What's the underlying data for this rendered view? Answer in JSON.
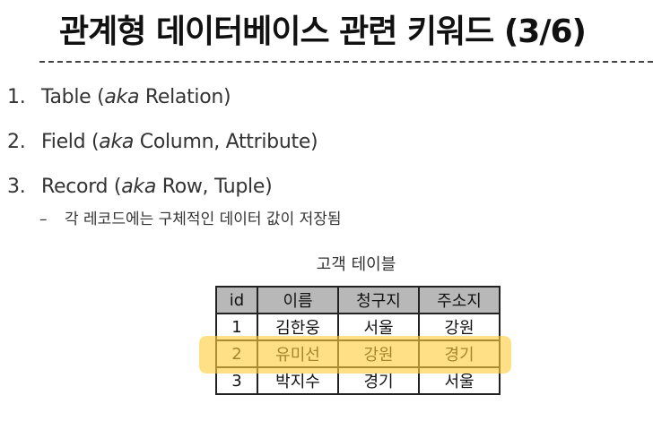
{
  "title": "관계형 데이터베이스 관련 키워드 (3/6)",
  "list": [
    {
      "num": "1.",
      "term": "Table (",
      "aka": "aka",
      "rest": " Relation)"
    },
    {
      "num": "2.",
      "term": "Field (",
      "aka": "aka",
      "rest": " Column, Attribute)"
    },
    {
      "num": "3.",
      "term": "Record (",
      "aka": "aka",
      "rest": " Row, Tuple)"
    }
  ],
  "sub_item": {
    "dash": "–",
    "text": "각 레코드에는 구체적인 데이터 값이 저장됨"
  },
  "table": {
    "caption": "고객 테이블",
    "headers": [
      "id",
      "이름",
      "청구지",
      "주소지"
    ],
    "rows": [
      [
        "1",
        "김한웅",
        "서울",
        "강원"
      ],
      [
        "2",
        "유미선",
        "강원",
        "경기"
      ],
      [
        "3",
        "박지수",
        "경기",
        "서울"
      ]
    ],
    "highlighted_row": 2
  },
  "colors": {
    "header_fill": "#b8b8b8",
    "highlight": "#ffcd3c"
  }
}
